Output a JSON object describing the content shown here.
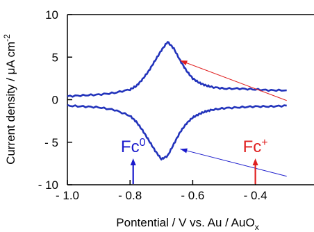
{
  "chart_data": {
    "type": "line",
    "title": "",
    "xlabel": "Pontential / V vs. Au / AuO",
    "xlabel_sub": "x",
    "ylabel": "Current density / μA cm",
    "ylabel_sup": "-2",
    "xlim": [
      -1.0,
      -0.3
    ],
    "ylim": [
      -10,
      10
    ],
    "x_ticks": [
      {
        "value": -1.0,
        "label": "- 1.0"
      },
      {
        "value": -0.8,
        "label": "- 0.8"
      },
      {
        "value": -0.6,
        "label": "- 0.6"
      },
      {
        "value": -0.4,
        "label": "- 0.4"
      }
    ],
    "y_ticks": [
      {
        "value": 10,
        "label": "10"
      },
      {
        "value": 5,
        "label": "5"
      },
      {
        "value": 0,
        "label": "0"
      },
      {
        "value": -5,
        "label": "- 5"
      },
      {
        "value": -10,
        "label": "- 10"
      }
    ],
    "series_color": "#2233bb",
    "series": [
      {
        "x": [
          -1.0,
          -0.95,
          -0.9,
          -0.85,
          -0.8,
          -0.78,
          -0.76,
          -0.74,
          -0.72,
          -0.7,
          -0.68,
          -0.66,
          -0.64,
          -0.62,
          -0.6,
          -0.58,
          -0.56,
          -0.54,
          -0.5,
          -0.45,
          -0.4,
          -0.35,
          -0.3
        ],
        "y": [
          0.4,
          0.5,
          0.6,
          0.8,
          1.2,
          1.6,
          2.4,
          3.4,
          4.6,
          5.8,
          6.8,
          6.0,
          4.6,
          3.4,
          2.5,
          2.0,
          1.7,
          1.5,
          1.3,
          1.3,
          1.2,
          1.1,
          1.1
        ]
      },
      {
        "x": [
          -1.0,
          -0.95,
          -0.9,
          -0.85,
          -0.8,
          -0.78,
          -0.76,
          -0.74,
          -0.72,
          -0.7,
          -0.68,
          -0.66,
          -0.64,
          -0.62,
          -0.6,
          -0.58,
          -0.56,
          -0.54,
          -0.5,
          -0.45,
          -0.4,
          -0.35,
          -0.3
        ],
        "y": [
          -0.7,
          -0.8,
          -0.9,
          -1.2,
          -1.9,
          -2.6,
          -3.6,
          -4.8,
          -6.0,
          -7.0,
          -6.6,
          -5.2,
          -3.8,
          -2.8,
          -2.1,
          -1.7,
          -1.4,
          -1.2,
          -1.0,
          -0.9,
          -0.8,
          -0.8,
          -0.7
        ]
      }
    ],
    "markers": [
      {
        "label": "Fc",
        "superscript": "0",
        "x": -0.79,
        "color": "#1a1acc"
      },
      {
        "label": "Fc",
        "superscript": "+",
        "x": -0.4,
        "color": "#e02020"
      }
    ],
    "pointers": [
      {
        "from_x": -0.3,
        "from_y": -0.1,
        "to_x": -0.64,
        "to_y": 4.6,
        "color": "#e02020"
      },
      {
        "from_x": -0.3,
        "from_y": -9.0,
        "to_x": -0.64,
        "to_y": -5.8,
        "color": "#1a1acc"
      }
    ]
  }
}
